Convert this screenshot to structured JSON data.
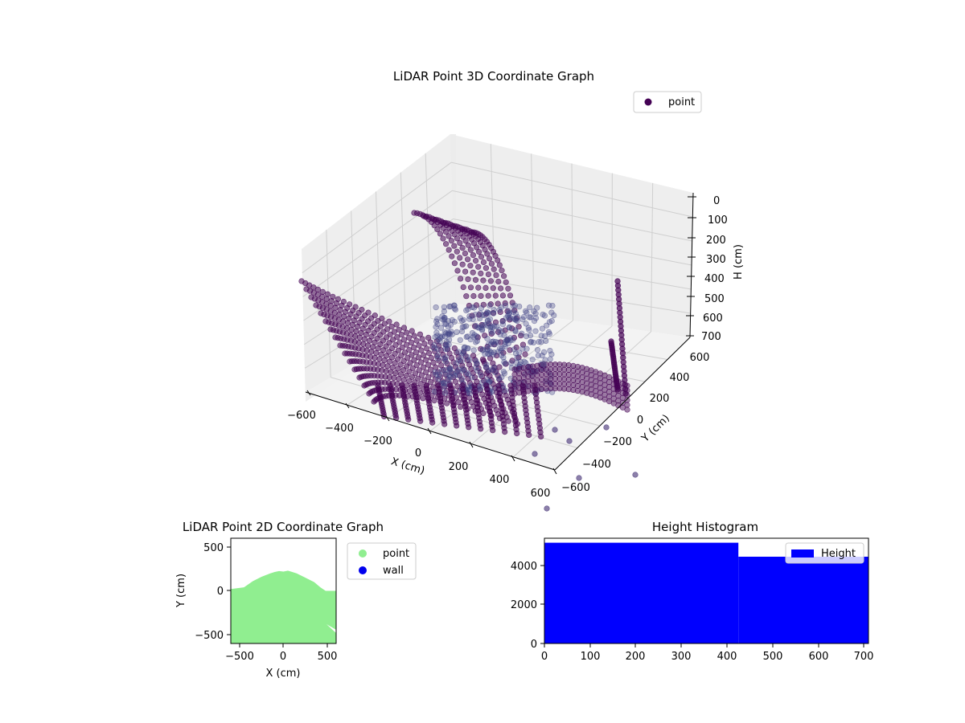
{
  "chart_data": [
    {
      "type": "scatter",
      "projection": "3d",
      "title": "LiDAR Point 3D Coordinate Graph",
      "xlabel": "X (cm)",
      "ylabel": "Y (cm)",
      "zlabel": "H (cm)",
      "xlim": [
        -600,
        600
      ],
      "ylim": [
        -600,
        600
      ],
      "zlim": [
        700,
        0
      ],
      "z_inverted": true,
      "xticks": [
        "−600",
        "−400",
        "−200",
        "0",
        "200",
        "400",
        "600"
      ],
      "yticks": [
        "−600",
        "−400",
        "−200",
        "0",
        "200",
        "400",
        "600"
      ],
      "zticks": [
        "0",
        "100",
        "200",
        "300",
        "400",
        "500",
        "600",
        "700"
      ],
      "grid": true,
      "legend": {
        "placement": "top-right",
        "entries": [
          {
            "name": "point",
            "color": "#440154"
          }
        ]
      },
      "series": [
        {
          "name": "point",
          "color": "#440154",
          "note_alpha": 0.5
        }
      ]
    },
    {
      "type": "scatter",
      "title": "LiDAR Point 2D Coordinate Graph",
      "xlabel": "X (cm)",
      "ylabel": "Y (cm)",
      "xlim": [
        -600,
        600
      ],
      "ylim": [
        -600,
        600
      ],
      "xticks": [
        "−500",
        "0",
        "500"
      ],
      "yticks": [
        "−500",
        "0",
        "500"
      ],
      "legend": {
        "placement": "outside-right",
        "entries": [
          {
            "name": "point",
            "color": "#90ee90"
          },
          {
            "name": "wall",
            "color": "#0000ee"
          }
        ]
      },
      "filled_region_top": [
        [
          -600,
          20
        ],
        [
          -450,
          40
        ],
        [
          -350,
          110
        ],
        [
          -250,
          160
        ],
        [
          -150,
          200
        ],
        [
          -100,
          215
        ],
        [
          -50,
          225
        ],
        [
          0,
          220
        ],
        [
          50,
          230
        ],
        [
          100,
          215
        ],
        [
          150,
          200
        ],
        [
          250,
          150
        ],
        [
          350,
          100
        ],
        [
          420,
          40
        ],
        [
          480,
          0
        ],
        [
          600,
          0
        ]
      ],
      "filled_region_bottom": -600
    },
    {
      "type": "bar",
      "subtype": "histogram",
      "title": "Height Histogram",
      "xlim": [
        0,
        710
      ],
      "ylim": [
        0,
        5400
      ],
      "xticks": [
        "0",
        "100",
        "200",
        "300",
        "400",
        "500",
        "600",
        "700"
      ],
      "yticks": [
        "0",
        "2000",
        "4000"
      ],
      "color": "#0000ff",
      "legend": {
        "placement": "top-right",
        "entries": [
          {
            "name": "Height",
            "color": "#0000ff"
          }
        ]
      },
      "bins": [
        {
          "x0": 0,
          "x1": 425,
          "count": 5170
        },
        {
          "x0": 425,
          "x1": 710,
          "count": 4450
        }
      ]
    }
  ]
}
